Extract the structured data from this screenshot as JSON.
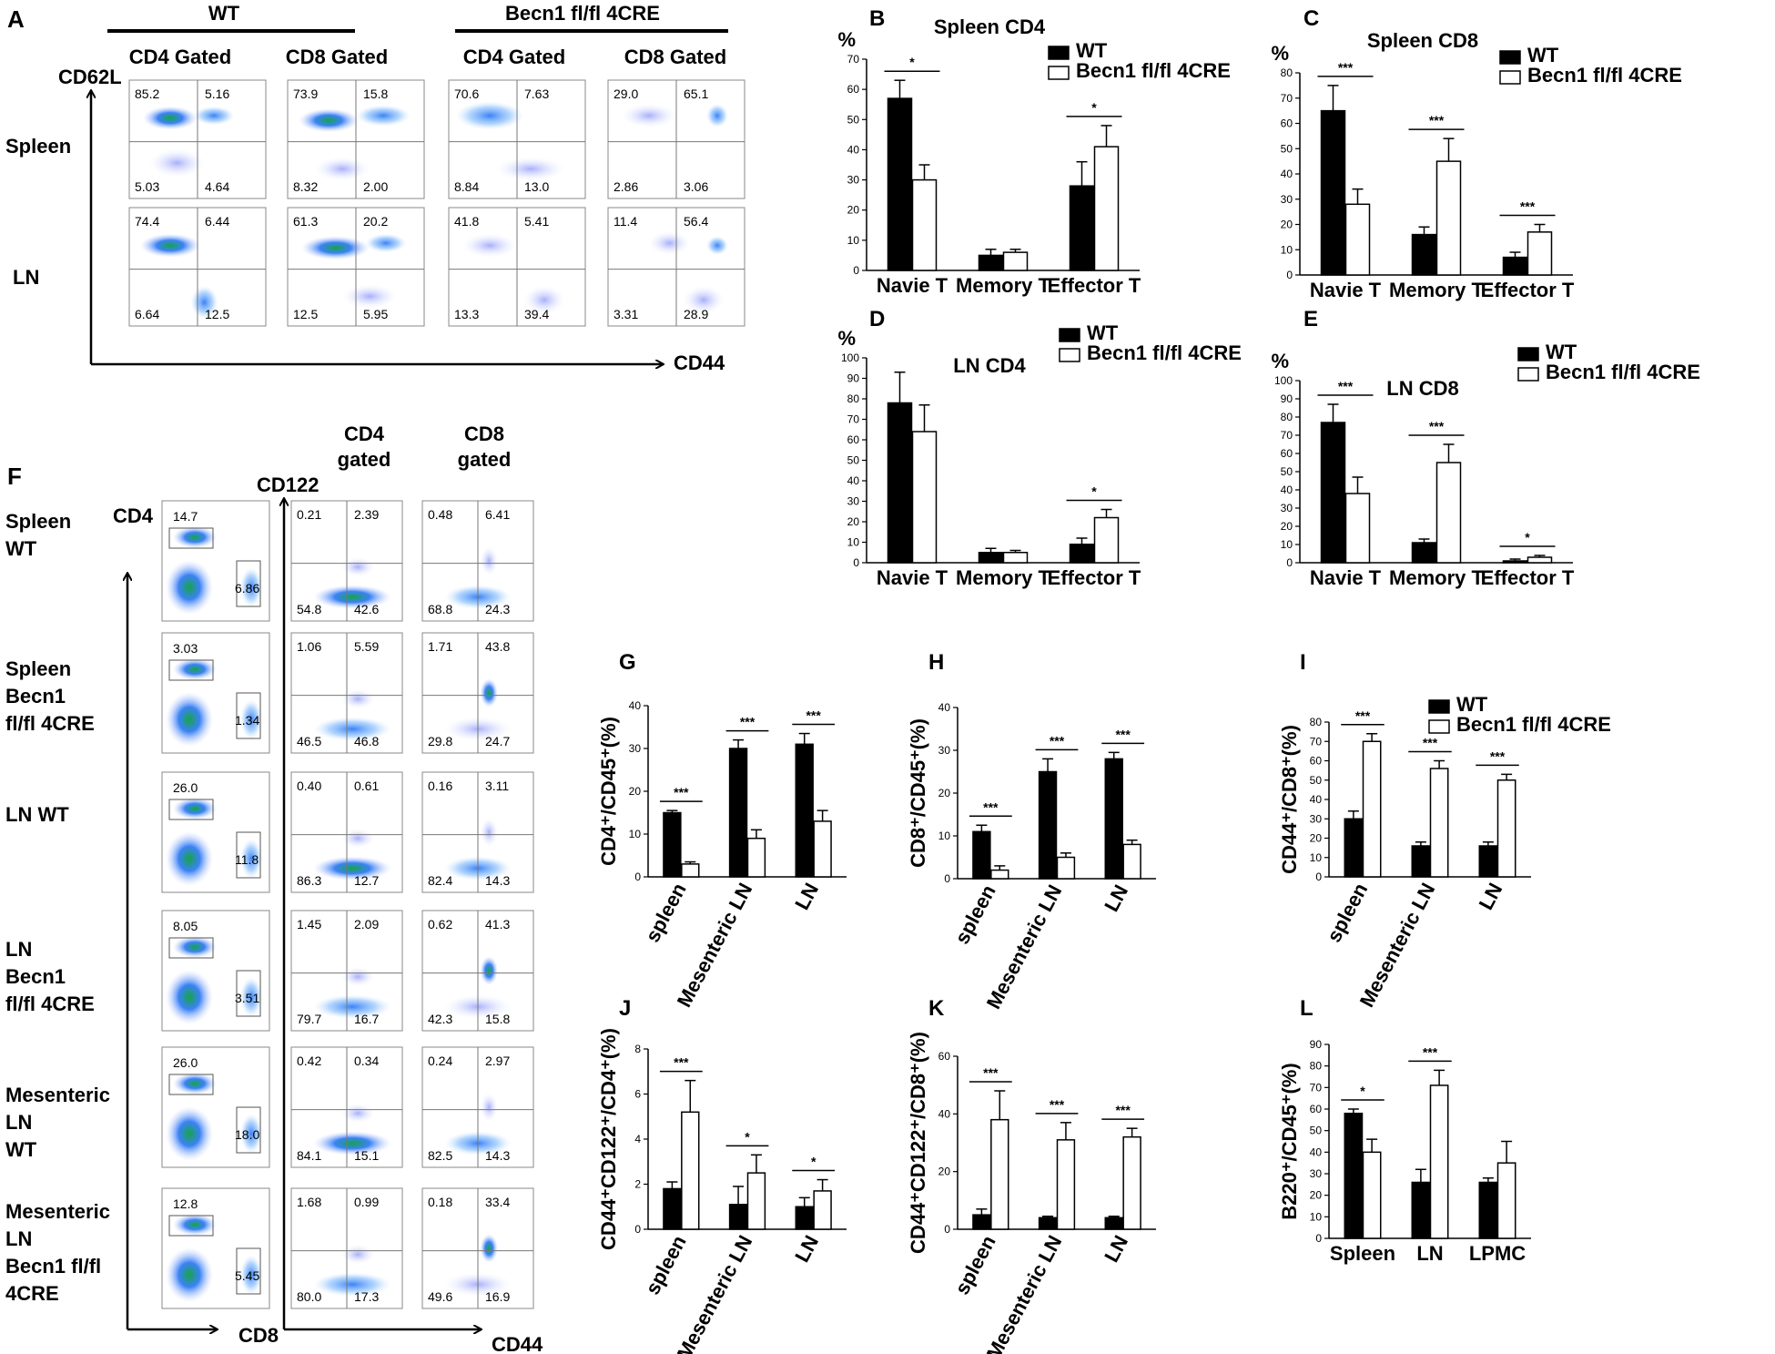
{
  "colors": {
    "wt": "#000000",
    "ko": "#ffffff",
    "density_high": "#22c55e",
    "density_mid": "#3b82f6",
    "density_low": "#c7d2fe"
  },
  "panel_a": {
    "letter": "A",
    "group_wt": "WT",
    "group_ko": "Becn1 fl/fl 4CRE",
    "col_headers": [
      "CD4 Gated",
      "CD8 Gated",
      "CD4 Gated",
      "CD8 Gated"
    ],
    "row_labels": [
      "Spleen",
      "LN"
    ],
    "y_axis": "CD62L",
    "x_axis": "CD44",
    "quadrants": [
      [
        [
          "85.2",
          "5.16",
          "5.03",
          "4.64"
        ],
        [
          "73.9",
          "15.8",
          "8.32",
          "2.00"
        ],
        [
          "70.6",
          "7.63",
          "8.84",
          "13.0"
        ],
        [
          "29.0",
          "65.1",
          "2.86",
          "3.06"
        ]
      ],
      [
        [
          "74.4",
          "6.44",
          "6.64",
          "12.5"
        ],
        [
          "61.3",
          "20.2",
          "12.5",
          "5.95"
        ],
        [
          "41.8",
          "5.41",
          "13.3",
          "39.4"
        ],
        [
          "11.4",
          "56.4",
          "3.31",
          "28.9"
        ]
      ]
    ]
  },
  "panel_f": {
    "letter": "F",
    "col1_y_axis": "CD4",
    "col1_x_axis": "CD8",
    "col2_header": "CD4 gated",
    "col3_header": "CD8 gated",
    "col23_y_axis": "CD122",
    "col23_x_axis": "CD44",
    "row_labels": [
      "Spleen WT",
      "Spleen Becn1 fl/fl 4CRE",
      "LN  WT",
      "LN Becn1 fl/fl 4CRE",
      "Mesenteric LN WT",
      "Mesenteric LN Becn1 fl/fl 4CRE"
    ],
    "rows": [
      {
        "cd4": "14.7",
        "cd8": "6.86",
        "cd4g": [
          "0.21",
          "2.39",
          "54.8",
          "42.6"
        ],
        "cd8g": [
          "0.48",
          "6.41",
          "68.8",
          "24.3"
        ]
      },
      {
        "cd4": "3.03",
        "cd8": "1.34",
        "cd4g": [
          "1.06",
          "5.59",
          "46.5",
          "46.8"
        ],
        "cd8g": [
          "1.71",
          "43.8",
          "29.8",
          "24.7"
        ]
      },
      {
        "cd4": "26.0",
        "cd8": "11.8",
        "cd4g": [
          "0.40",
          "0.61",
          "86.3",
          "12.7"
        ],
        "cd8g": [
          "0.16",
          "3.11",
          "82.4",
          "14.3"
        ]
      },
      {
        "cd4": "8.05",
        "cd8": "3.51",
        "cd4g": [
          "1.45",
          "2.09",
          "79.7",
          "16.7"
        ],
        "cd8g": [
          "0.62",
          "41.3",
          "42.3",
          "15.8"
        ]
      },
      {
        "cd4": "26.0",
        "cd8": "18.0",
        "cd4g": [
          "0.42",
          "0.34",
          "84.1",
          "15.1"
        ],
        "cd8g": [
          "0.24",
          "2.97",
          "82.5",
          "14.3"
        ]
      },
      {
        "cd4": "12.8",
        "cd8": "5.45",
        "cd4g": [
          "1.68",
          "0.99",
          "80.0",
          "17.3"
        ],
        "cd8g": [
          "0.18",
          "33.4",
          "49.6",
          "16.9"
        ]
      }
    ]
  },
  "chart_data": [
    {
      "id": "B",
      "type": "bar",
      "title": "Spleen CD4",
      "ylabel": "%",
      "ylim": [
        0,
        70
      ],
      "yticks": [
        0,
        10,
        20,
        30,
        40,
        50,
        60,
        70
      ],
      "categories": [
        "Navie T",
        "Memory T",
        "Effector T"
      ],
      "series": [
        {
          "name": "WT",
          "values": [
            57,
            5,
            28
          ],
          "errors": [
            6,
            2,
            8
          ]
        },
        {
          "name": "Becn1 fl/fl 4CRE",
          "values": [
            30,
            6,
            41
          ],
          "errors": [
            5,
            1,
            7
          ]
        }
      ],
      "significance": [
        "*",
        "",
        "*"
      ],
      "legend": [
        "WT",
        "Becn1 fl/fl 4CRE"
      ],
      "legend_position": "top-right",
      "rotate_ticks": false
    },
    {
      "id": "C",
      "type": "bar",
      "title": "Spleen CD8",
      "ylabel": "%",
      "ylim": [
        0,
        80
      ],
      "yticks": [
        0,
        10,
        20,
        30,
        40,
        50,
        60,
        70,
        80
      ],
      "categories": [
        "Navie T",
        "Memory T",
        "Effector T"
      ],
      "series": [
        {
          "name": "WT",
          "values": [
            65,
            16,
            7
          ],
          "errors": [
            10,
            3,
            2
          ]
        },
        {
          "name": "Becn1 fl/fl 4CRE",
          "values": [
            28,
            45,
            17
          ],
          "errors": [
            6,
            9,
            3
          ]
        }
      ],
      "significance": [
        "***",
        "***",
        "***"
      ],
      "legend": [
        "WT",
        "Becn1 fl/fl 4CRE"
      ],
      "legend_position": "top-right",
      "rotate_ticks": false
    },
    {
      "id": "D",
      "type": "bar",
      "title": "LN CD4",
      "ylabel": "%",
      "ylim": [
        0,
        100
      ],
      "yticks": [
        0,
        10,
        20,
        30,
        40,
        50,
        60,
        70,
        80,
        90,
        100
      ],
      "categories": [
        "Navie T",
        "Memory T",
        "Effector T"
      ],
      "series": [
        {
          "name": "WT",
          "values": [
            78,
            5,
            9
          ],
          "errors": [
            15,
            2,
            3
          ]
        },
        {
          "name": "Becn1 fl/fl 4CRE",
          "values": [
            64,
            5,
            22
          ],
          "errors": [
            13,
            1,
            4
          ]
        }
      ],
      "significance": [
        "",
        "",
        "*"
      ],
      "legend": [
        "WT",
        "Becn1 fl/fl 4CRE"
      ],
      "legend_position": "top-right",
      "rotate_ticks": false
    },
    {
      "id": "E",
      "type": "bar",
      "title": "LN CD8",
      "ylabel": "%",
      "ylim": [
        0,
        100
      ],
      "yticks": [
        0,
        10,
        20,
        30,
        40,
        50,
        60,
        70,
        80,
        90,
        100
      ],
      "categories": [
        "Navie T",
        "Memory T",
        "Effector T"
      ],
      "series": [
        {
          "name": "WT",
          "values": [
            77,
            11,
            1
          ],
          "errors": [
            10,
            2,
            1
          ]
        },
        {
          "name": "Becn1 fl/fl 4CRE",
          "values": [
            38,
            55,
            3
          ],
          "errors": [
            9,
            10,
            1
          ]
        }
      ],
      "significance": [
        "***",
        "***",
        "*"
      ],
      "legend": [
        "WT",
        "Becn1 fl/fl 4CRE"
      ],
      "legend_position": "top-right",
      "rotate_ticks": false
    },
    {
      "id": "G",
      "type": "bar",
      "title": "",
      "ylabel": "CD4⁺/CD45⁺(%)",
      "ylim": [
        0,
        40
      ],
      "yticks": [
        0,
        10,
        20,
        30,
        40
      ],
      "categories": [
        "spleen",
        "Mesenteric LN",
        "LN"
      ],
      "series": [
        {
          "name": "WT",
          "values": [
            15,
            30,
            31
          ],
          "errors": [
            0.5,
            2,
            2.5
          ]
        },
        {
          "name": "Becn1 fl/fl 4CRE",
          "values": [
            3,
            9,
            13
          ],
          "errors": [
            0.5,
            2,
            2.5
          ]
        }
      ],
      "significance": [
        "***",
        "***",
        "***"
      ],
      "legend": [],
      "rotate_ticks": true
    },
    {
      "id": "H",
      "type": "bar",
      "title": "",
      "ylabel": "CD8⁺/CD45⁺(%)",
      "ylim": [
        0,
        40
      ],
      "yticks": [
        0,
        10,
        20,
        30,
        40
      ],
      "categories": [
        "spleen",
        "Mesenteric LN",
        "LN"
      ],
      "series": [
        {
          "name": "WT",
          "values": [
            11,
            25,
            28
          ],
          "errors": [
            1.5,
            3,
            1.5
          ]
        },
        {
          "name": "Becn1 fl/fl 4CRE",
          "values": [
            2,
            5,
            8
          ],
          "errors": [
            1,
            1,
            1
          ]
        }
      ],
      "significance": [
        "***",
        "***",
        "***"
      ],
      "legend": [],
      "rotate_ticks": true
    },
    {
      "id": "I",
      "type": "bar",
      "title": "",
      "ylabel": "CD44⁺/CD8⁺(%)",
      "ylim": [
        0,
        80
      ],
      "yticks": [
        0,
        10,
        20,
        30,
        40,
        50,
        60,
        70,
        80
      ],
      "categories": [
        "spleen",
        "Mesenteric LN",
        "LN"
      ],
      "series": [
        {
          "name": "WT",
          "values": [
            30,
            16,
            16
          ],
          "errors": [
            4,
            2,
            2
          ]
        },
        {
          "name": "Becn1 fl/fl 4CRE",
          "values": [
            70,
            56,
            50
          ],
          "errors": [
            4,
            4,
            3
          ]
        }
      ],
      "significance": [
        "***",
        "***",
        "***"
      ],
      "legend": [
        "WT",
        "Becn1 fl/fl 4CRE"
      ],
      "legend_position": "top-right",
      "rotate_ticks": true
    },
    {
      "id": "J",
      "type": "bar",
      "title": "",
      "ylabel": "CD44⁺CD122⁺/CD4⁺(%)",
      "ylim": [
        0,
        8
      ],
      "yticks": [
        0,
        2,
        4,
        6,
        8
      ],
      "categories": [
        "spleen",
        "Mesenteric LN",
        "LN"
      ],
      "series": [
        {
          "name": "WT",
          "values": [
            1.8,
            1.1,
            1.0
          ],
          "errors": [
            0.3,
            0.8,
            0.4
          ]
        },
        {
          "name": "Becn1 fl/fl 4CRE",
          "values": [
            5.2,
            2.5,
            1.7
          ],
          "errors": [
            1.4,
            0.8,
            0.5
          ]
        }
      ],
      "significance": [
        "***",
        "*",
        "*"
      ],
      "legend": [],
      "rotate_ticks": true
    },
    {
      "id": "K",
      "type": "bar",
      "title": "",
      "ylabel": "CD44⁺CD122⁺/CD8⁺(%)",
      "ylim": [
        0,
        60
      ],
      "yticks": [
        0,
        20,
        40,
        60
      ],
      "categories": [
        "spleen",
        "Mesenteric LN",
        "LN"
      ],
      "series": [
        {
          "name": "WT",
          "values": [
            5,
            4,
            4
          ],
          "errors": [
            2,
            0.5,
            0.5
          ]
        },
        {
          "name": "Becn1 fl/fl 4CRE",
          "values": [
            38,
            31,
            32
          ],
          "errors": [
            10,
            6,
            3
          ]
        }
      ],
      "significance": [
        "***",
        "***",
        "***"
      ],
      "legend": [],
      "rotate_ticks": true
    },
    {
      "id": "L",
      "type": "bar",
      "title": "",
      "ylabel": "B220⁺/CD45⁺(%)",
      "ylim": [
        0,
        90
      ],
      "yticks": [
        0,
        10,
        20,
        30,
        40,
        50,
        60,
        70,
        80,
        90
      ],
      "categories": [
        "Spleen",
        "LN",
        "LPMC"
      ],
      "series": [
        {
          "name": "WT",
          "values": [
            58,
            26,
            26
          ],
          "errors": [
            2,
            6,
            2
          ]
        },
        {
          "name": "Becn1 fl/fl 4CRE",
          "values": [
            40,
            71,
            35
          ],
          "errors": [
            6,
            7,
            10
          ]
        }
      ],
      "significance": [
        "*",
        "***",
        ""
      ],
      "legend": [],
      "rotate_ticks": false
    }
  ]
}
